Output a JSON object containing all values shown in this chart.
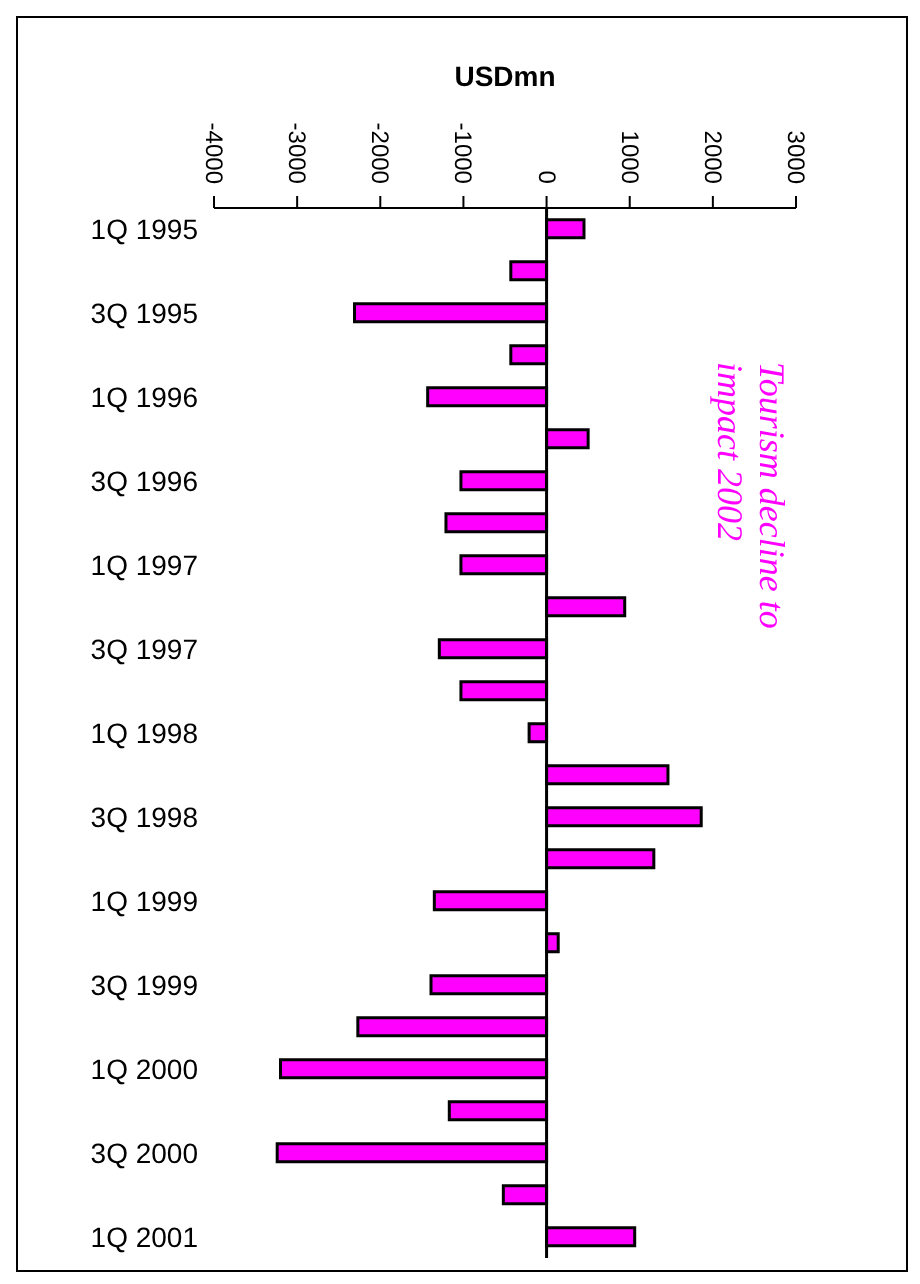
{
  "chart_data": {
    "type": "bar",
    "orientation": "horizontal",
    "xlabel": "USDmn",
    "categories": [
      "1Q 1995",
      null,
      "3Q 1995",
      null,
      "1Q 1996",
      null,
      "3Q 1996",
      null,
      "1Q 1997",
      null,
      "3Q 1997",
      null,
      "1Q 1998",
      null,
      "3Q 1998",
      null,
      "1Q 1999",
      null,
      "3Q 1999",
      null,
      "1Q 2000",
      null,
      "3Q 2000",
      null,
      "1Q 2001"
    ],
    "values": [
      450,
      -430,
      -2310,
      -430,
      -1430,
      500,
      -1030,
      -1210,
      -1030,
      940,
      -1290,
      -1030,
      -210,
      1460,
      1860,
      1290,
      -1350,
      140,
      -1390,
      -2270,
      -3200,
      -1170,
      -3240,
      -520,
      1060
    ],
    "color": "#ff00ff",
    "xlim": [
      -4000,
      3000
    ],
    "xticks": [
      -4000,
      -3000,
      -2000,
      -1000,
      0,
      1000,
      2000,
      3000
    ],
    "annotations": [
      "Tourism decline to impact 2002"
    ],
    "ref_lines": [
      {
        "axis": "x",
        "value": 0,
        "color": "#000000"
      }
    ],
    "legend": false
  }
}
